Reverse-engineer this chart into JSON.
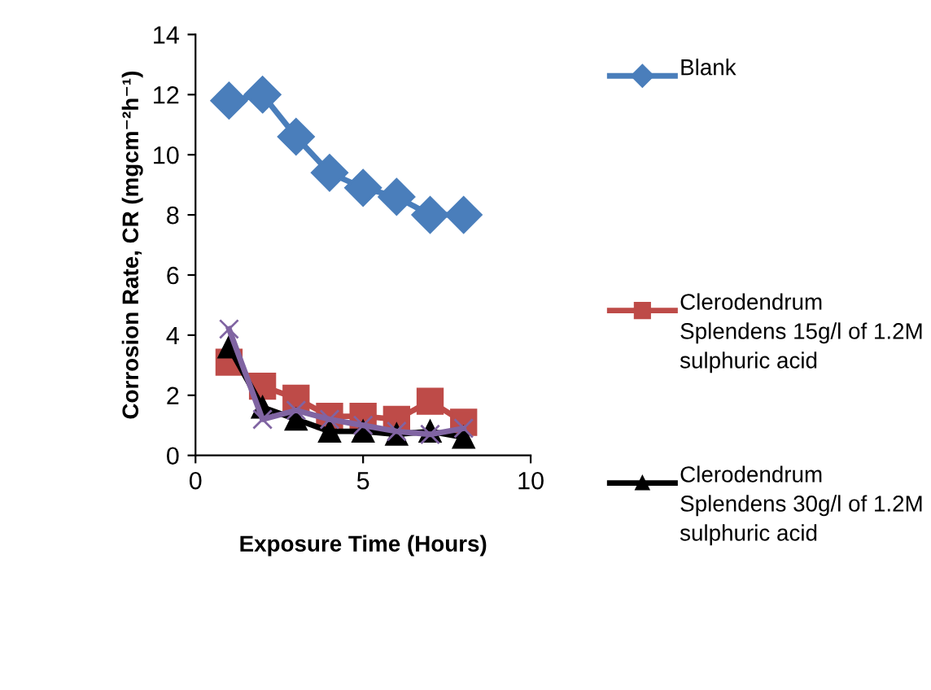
{
  "chart_data": {
    "type": "line",
    "xlabel": "Exposure Time (Hours)",
    "ylabel": "Corrosion Rate, CR (mgcm⁻²h⁻¹)",
    "x": [
      1,
      2,
      3,
      4,
      5,
      6,
      7,
      8
    ],
    "series": [
      {
        "name": "Blank",
        "color": "#4a7ebb",
        "marker": "diamond",
        "values": [
          11.8,
          12.0,
          10.6,
          9.4,
          8.9,
          8.6,
          8.0,
          8.0
        ]
      },
      {
        "name": "Clerodendrum Splendens 15g/l of 1.2M sulphuric acid",
        "color": "#be4b48",
        "marker": "square",
        "values": [
          3.1,
          2.3,
          1.9,
          1.3,
          1.3,
          1.2,
          1.8,
          1.1
        ]
      },
      {
        "name": "Clerodendrum Splendens 30g/l of 1.2M sulphuric acid",
        "color": "#000000",
        "marker": "triangle",
        "values": [
          3.6,
          1.6,
          1.2,
          0.8,
          0.8,
          0.7,
          0.8,
          0.6
        ]
      },
      {
        "color": "#8064a2",
        "marker": "cross",
        "values": [
          4.2,
          1.2,
          1.5,
          1.2,
          1.0,
          0.8,
          0.7,
          0.9
        ]
      }
    ],
    "xlim": [
      0,
      10
    ],
    "xticks": [
      0,
      5,
      10
    ],
    "ylim": [
      0,
      14
    ],
    "yticks": [
      0,
      2,
      4,
      6,
      8,
      10,
      12,
      14
    ],
    "grid": false,
    "legend": "right"
  }
}
